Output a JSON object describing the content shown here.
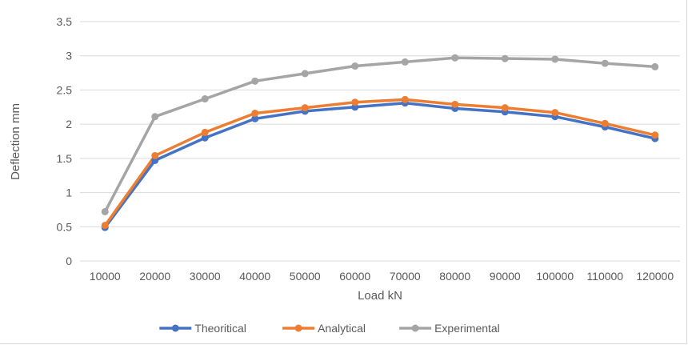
{
  "chart_data": {
    "type": "line",
    "title": "",
    "xlabel": "Load kN",
    "ylabel": "Deflection mm",
    "categories": [
      "10000",
      "20000",
      "30000",
      "40000",
      "50000",
      "60000",
      "70000",
      "80000",
      "90000",
      "100000",
      "110000",
      "120000"
    ],
    "ylim": [
      0,
      3.5
    ],
    "yticks": [
      "0",
      "0.5",
      "1",
      "1.5",
      "2",
      "2.5",
      "3",
      "3.5"
    ],
    "grid": true,
    "legend_position": "bottom",
    "series": [
      {
        "name": "Theoritical",
        "color": "#4472c4",
        "values": [
          0.49,
          1.47,
          1.8,
          2.08,
          2.19,
          2.25,
          2.31,
          2.23,
          2.18,
          2.11,
          1.96,
          1.79
        ]
      },
      {
        "name": "Analytical",
        "color": "#ed7d31",
        "values": [
          0.52,
          1.54,
          1.88,
          2.16,
          2.24,
          2.32,
          2.36,
          2.29,
          2.24,
          2.17,
          2.01,
          1.84
        ]
      },
      {
        "name": "Experimental",
        "color": "#a5a5a5",
        "values": [
          0.72,
          2.11,
          2.37,
          2.63,
          2.74,
          2.85,
          2.91,
          2.97,
          2.96,
          2.95,
          2.89,
          2.84
        ]
      }
    ]
  }
}
